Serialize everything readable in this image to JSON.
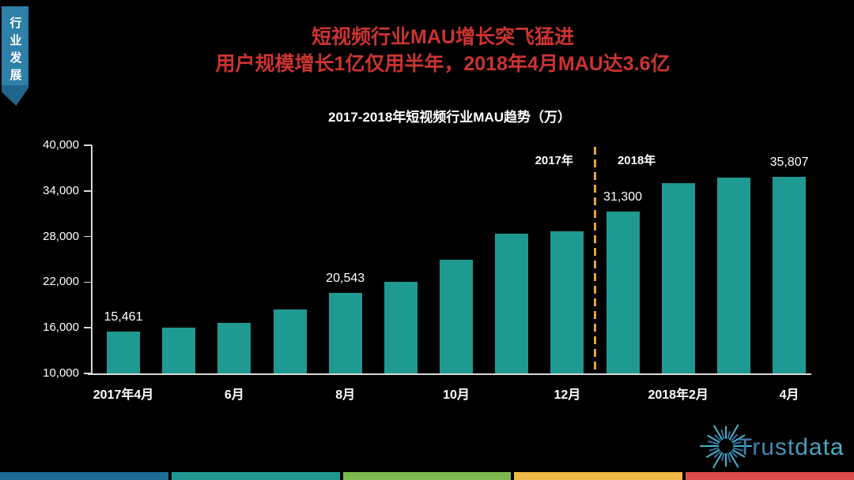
{
  "page": {
    "background": "#000000"
  },
  "corner_tab": {
    "label": "行业发展",
    "color": "#2e80a8",
    "fold_color": "#20658b",
    "text_color": "#ffffff"
  },
  "header": {
    "title_line1": "短视频行业MAU增长突飞猛进",
    "title_line2": "用户规模增长1亿仅用半年，2018年4月MAU达3.6亿",
    "title_color": "#cb3431"
  },
  "chart_data": {
    "type": "bar",
    "title": "2017-2018年短视频行业MAU趋势（万）",
    "unit": "万",
    "ylim": [
      10000,
      40000
    ],
    "ytick_labels": [
      "40,000",
      "34,000",
      "28,000",
      "22,000",
      "16,000",
      "10,000"
    ],
    "grid": false,
    "bar_color": "#1f9a93",
    "axis_color": "#d8d8d8",
    "label_color": "#ffffff",
    "bars": [
      {
        "month": "2017年4月",
        "value": 15461,
        "data_label": "15,461",
        "axis_label": "2017年4月"
      },
      {
        "month": "2017年5月",
        "value": 16000
      },
      {
        "month": "2017年6月",
        "value": 16650,
        "axis_label": "6月"
      },
      {
        "month": "2017年7月",
        "value": 18400
      },
      {
        "month": "2017年8月",
        "value": 20543,
        "data_label": "20,543",
        "axis_label": "8月"
      },
      {
        "month": "2017年9月",
        "value": 22000
      },
      {
        "month": "2017年10月",
        "value": 25000,
        "axis_label": "10月"
      },
      {
        "month": "2017年11月",
        "value": 28400
      },
      {
        "month": "2017年12月",
        "value": 28650,
        "axis_label": "12月"
      },
      {
        "month": "2018年1月",
        "value": 31300,
        "data_label": "31,300"
      },
      {
        "month": "2018年2月",
        "value": 35000,
        "axis_label": "2018年2月"
      },
      {
        "month": "2018年3月",
        "value": 35700
      },
      {
        "month": "2018年4月",
        "value": 35807,
        "data_label": "35,807",
        "axis_label": "4月"
      }
    ],
    "divider": {
      "after_index": 8,
      "color": "#e8a33c",
      "left_label": "2017年",
      "right_label": "2018年"
    },
    "legend_position": "none"
  },
  "logo": {
    "text": "Trustdata",
    "ray_color_inner": "#2f6fa6",
    "ray_color_outer": "#45b7c9",
    "text_color_start": "#3e76ab",
    "text_color_end": "#4fb3c6"
  },
  "footer_strip": {
    "colors": [
      "#1d6d99",
      "#1f9a92",
      "#7eba52",
      "#f0b945",
      "#e04b4b"
    ]
  }
}
